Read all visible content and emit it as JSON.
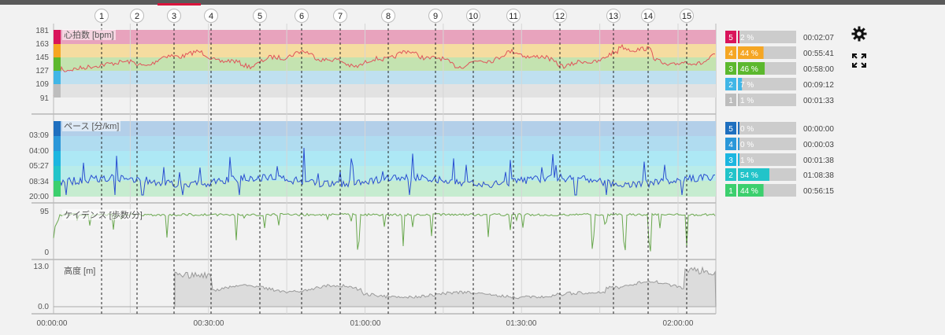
{
  "colors": {
    "heart_line": "#e0545a",
    "pace_line": "#2a4fd1",
    "cadence_line": "#6aa84f",
    "altitude_fill": "#dcdcdc",
    "altitude_line": "#9a9a9a",
    "accent": "#d9143c"
  },
  "chart_data": [
    {
      "type": "line",
      "title": "心拍数 [bpm]",
      "yticks": [
        "181",
        "163",
        "145",
        "127",
        "109",
        "91"
      ],
      "zones": [
        {
          "zone": "5",
          "percent": "2 %",
          "fraction": 0.02,
          "time": "00:02:07",
          "color": "#e8a3bd",
          "badge": "#d9145b"
        },
        {
          "zone": "4",
          "percent": "44 %",
          "fraction": 0.44,
          "time": "00:55:41",
          "color": "#f5dca0",
          "badge": "#f5a623"
        },
        {
          "zone": "3",
          "percent": "46 %",
          "fraction": 0.46,
          "time": "00:58:00",
          "color": "#c4e3b0",
          "badge": "#5cb82e"
        },
        {
          "zone": "2",
          "percent": "7 %",
          "fraction": 0.07,
          "time": "00:09:12",
          "color": "#bfe0f0",
          "badge": "#41b6e6"
        },
        {
          "zone": "1",
          "percent": "1 %",
          "fraction": 0.01,
          "time": "00:01:33",
          "color": "#e2e2e2",
          "badge": "#bdbdbd"
        }
      ]
    },
    {
      "type": "line",
      "title": "ペース [分/km]",
      "yticks": [
        "03:09",
        "04:00",
        "05:27",
        "08:34",
        "20:00"
      ],
      "zones": [
        {
          "zone": "5",
          "percent": "0 %",
          "fraction": 0.0,
          "time": "00:00:00",
          "color": "#b3cfe9",
          "badge": "#1f6fbf"
        },
        {
          "zone": "4",
          "percent": "0 %",
          "fraction": 0.0,
          "time": "00:00:03",
          "color": "#b0dcf0",
          "badge": "#2a97d9"
        },
        {
          "zone": "3",
          "percent": "1 %",
          "fraction": 0.01,
          "time": "00:01:38",
          "color": "#ade8f5",
          "badge": "#1cb6e0"
        },
        {
          "zone": "2",
          "percent": "54 %",
          "fraction": 0.54,
          "time": "01:08:38",
          "color": "#b9ecea",
          "badge": "#22c4c9"
        },
        {
          "zone": "1",
          "percent": "44 %",
          "fraction": 0.44,
          "time": "00:56:15",
          "color": "#c6ecd0",
          "badge": "#3ccf6e"
        }
      ]
    },
    {
      "type": "line",
      "title": "ケイデンス [歩数/分]",
      "yticks": [
        "95",
        "0"
      ]
    },
    {
      "type": "area",
      "title": "高度 [m]",
      "yticks": [
        "13.0",
        "0.0"
      ]
    }
  ],
  "x_axis": {
    "ticks": [
      "00:00:00",
      "00:30:00",
      "01:00:00",
      "01:30:00",
      "02:00:00"
    ]
  },
  "laps": [
    "1",
    "2",
    "3",
    "4",
    "5",
    "6",
    "7",
    "8",
    "9",
    "10",
    "11",
    "12",
    "13",
    "14",
    "15"
  ]
}
